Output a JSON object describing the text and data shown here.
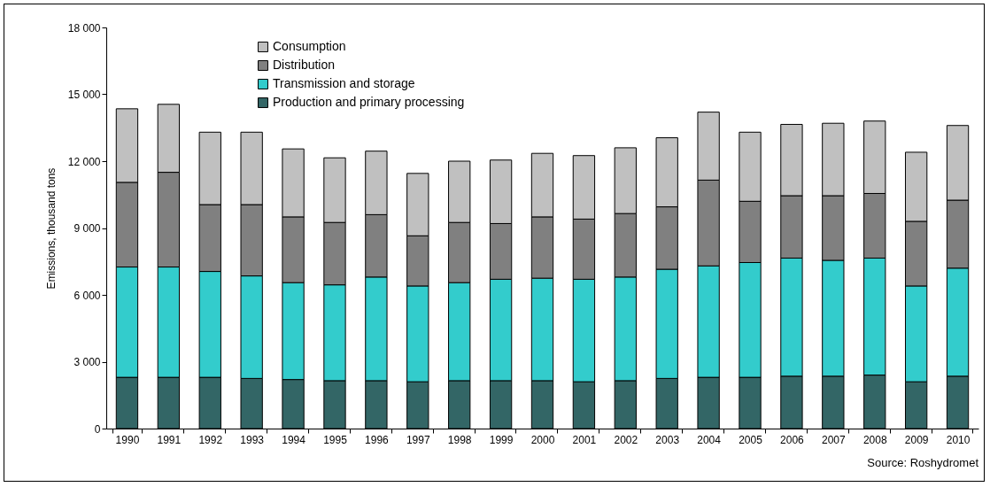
{
  "chart_data": {
    "type": "bar",
    "stacked": true,
    "ylabel": "Emissions, thousand tons",
    "categories": [
      "1990",
      "1991",
      "1992",
      "1993",
      "1994",
      "1995",
      "1996",
      "1997",
      "1998",
      "1999",
      "2000",
      "2001",
      "2002",
      "2003",
      "2004",
      "2005",
      "2006",
      "2007",
      "2008",
      "2009",
      "2010"
    ],
    "series": [
      {
        "name": "Production and primary processing",
        "color": "#336666",
        "values": [
          2300,
          2300,
          2300,
          2250,
          2200,
          2150,
          2150,
          2100,
          2150,
          2150,
          2150,
          2100,
          2150,
          2250,
          2300,
          2300,
          2350,
          2350,
          2400,
          2100,
          2350
        ]
      },
      {
        "name": "Transmission and storage",
        "color": "#33cccc",
        "values": [
          4950,
          4950,
          4750,
          4600,
          4350,
          4300,
          4650,
          4300,
          4400,
          4550,
          4600,
          4600,
          4650,
          4900,
          5000,
          5150,
          5300,
          5200,
          5250,
          4300,
          4850
        ]
      },
      {
        "name": "Distribution",
        "color": "#808080",
        "values": [
          3800,
          4250,
          3000,
          3200,
          2950,
          2800,
          2800,
          2250,
          2700,
          2500,
          2750,
          2700,
          2850,
          2800,
          3850,
          2750,
          2800,
          2900,
          2900,
          2900,
          3050
        ]
      },
      {
        "name": "Consumption",
        "color": "#c0c0c0",
        "values": [
          3300,
          3050,
          3250,
          3250,
          3050,
          2900,
          2850,
          2800,
          2750,
          2850,
          2850,
          2850,
          2950,
          3100,
          3050,
          3100,
          3200,
          3250,
          3250,
          3100,
          3350
        ]
      }
    ],
    "ylim": [
      0,
      18000
    ],
    "yticks": [
      {
        "value": 0,
        "label": "0"
      },
      {
        "value": 3000,
        "label": "3 000"
      },
      {
        "value": 6000,
        "label": "6 000"
      },
      {
        "value": 9000,
        "label": "9 000"
      },
      {
        "value": 12000,
        "label": "12 000"
      },
      {
        "value": 15000,
        "label": "15 000"
      },
      {
        "value": 18000,
        "label": "18 000"
      }
    ],
    "legend": "top left",
    "grid": false,
    "annotations": [
      "Source: Roshydromet"
    ]
  }
}
